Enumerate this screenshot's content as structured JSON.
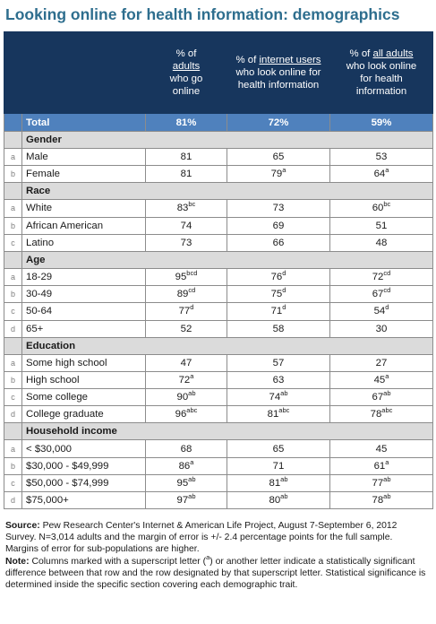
{
  "title": "Looking online for health information: demographics",
  "header": {
    "col1": [
      "% of",
      "adults",
      "who go",
      "online"
    ],
    "col2_pre": "% of ",
    "col2_u": "internet users",
    "col2_rest": [
      "who look online for",
      "health information"
    ],
    "col3_pre": "% of ",
    "col3_u": "all adults",
    "col3_rest": [
      "who look online",
      "for health",
      "information"
    ]
  },
  "total": {
    "label": "Total",
    "v1": "81%",
    "v2": "72%",
    "v3": "59%"
  },
  "sections": [
    {
      "name": "Gender",
      "rows": [
        {
          "l": "a",
          "label": "Male",
          "v": [
            [
              "81",
              ""
            ],
            [
              "65",
              ""
            ],
            [
              "53",
              ""
            ]
          ]
        },
        {
          "l": "b",
          "label": "Female",
          "v": [
            [
              "81",
              ""
            ],
            [
              "79",
              "a"
            ],
            [
              "64",
              "a"
            ]
          ]
        }
      ]
    },
    {
      "name": "Race",
      "rows": [
        {
          "l": "a",
          "label": "White",
          "v": [
            [
              "83",
              "bc"
            ],
            [
              "73",
              ""
            ],
            [
              "60",
              "bc"
            ]
          ]
        },
        {
          "l": "b",
          "label": "African American",
          "v": [
            [
              "74",
              ""
            ],
            [
              "69",
              ""
            ],
            [
              "51",
              ""
            ]
          ]
        },
        {
          "l": "c",
          "label": "Latino",
          "v": [
            [
              "73",
              ""
            ],
            [
              "66",
              ""
            ],
            [
              "48",
              ""
            ]
          ]
        }
      ]
    },
    {
      "name": "Age",
      "rows": [
        {
          "l": "a",
          "label": "18-29",
          "v": [
            [
              "95",
              "bcd"
            ],
            [
              "76",
              "d"
            ],
            [
              "72",
              "cd"
            ]
          ]
        },
        {
          "l": "b",
          "label": "30-49",
          "v": [
            [
              "89",
              "cd"
            ],
            [
              "75",
              "d"
            ],
            [
              "67",
              "cd"
            ]
          ]
        },
        {
          "l": "c",
          "label": "50-64",
          "v": [
            [
              "77",
              "d"
            ],
            [
              "71",
              "d"
            ],
            [
              "54",
              "d"
            ]
          ]
        },
        {
          "l": "d",
          "label": "65+",
          "v": [
            [
              "52",
              ""
            ],
            [
              "58",
              ""
            ],
            [
              "30",
              ""
            ]
          ]
        }
      ]
    },
    {
      "name": "Education",
      "rows": [
        {
          "l": "a",
          "label": "Some high school",
          "v": [
            [
              "47",
              ""
            ],
            [
              "57",
              ""
            ],
            [
              "27",
              ""
            ]
          ]
        },
        {
          "l": "b",
          "label": "High school",
          "v": [
            [
              "72",
              "a"
            ],
            [
              "63",
              ""
            ],
            [
              "45",
              "a"
            ]
          ]
        },
        {
          "l": "c",
          "label": "Some college",
          "v": [
            [
              "90",
              "ab"
            ],
            [
              "74",
              "ab"
            ],
            [
              "67",
              "ab"
            ]
          ]
        },
        {
          "l": "d",
          "label": "College graduate",
          "v": [
            [
              "96",
              "abc"
            ],
            [
              "81",
              "abc"
            ],
            [
              "78",
              "abc"
            ]
          ]
        }
      ]
    },
    {
      "name": "Household income",
      "rows": [
        {
          "l": "a",
          "label": "< $30,000",
          "v": [
            [
              "68",
              ""
            ],
            [
              "65",
              ""
            ],
            [
              "45",
              ""
            ]
          ]
        },
        {
          "l": "b",
          "label": "$30,000 - $49,999",
          "v": [
            [
              "86",
              "a"
            ],
            [
              "71",
              ""
            ],
            [
              "61",
              "a"
            ]
          ]
        },
        {
          "l": "c",
          "label": "$50,000 - $74,999",
          "v": [
            [
              "95",
              "ab"
            ],
            [
              "81",
              "ab"
            ],
            [
              "77",
              "ab"
            ]
          ]
        },
        {
          "l": "d",
          "label": "$75,000+",
          "v": [
            [
              "97",
              "ab"
            ],
            [
              "80",
              "ab"
            ],
            [
              "78",
              "ab"
            ]
          ]
        }
      ]
    }
  ],
  "footer": {
    "source_label": "Source:",
    "source_text": " Pew Research Center's Internet & American Life Project, August 7-September 6, 2012 Survey. N=3,014 adults and the margin of error is +/- 2.4 percentage points for the full sample. Margins of error for sub-populations are higher.",
    "note_label": "Note:",
    "note_text": " Columns marked with a superscript letter (",
    "note_sup": "a",
    "note_text2": ") or another letter indicate a statistically significant difference between that row and the row designated by that superscript letter. Statistical significance is determined inside the specific section covering each demographic trait."
  }
}
